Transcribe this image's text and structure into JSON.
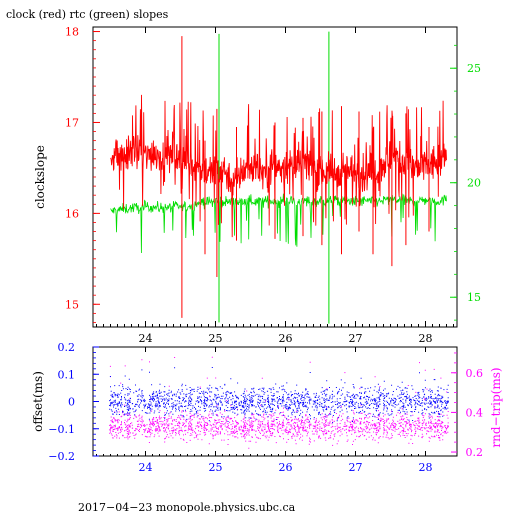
{
  "colors": {
    "clock": "#ff0000",
    "rtc": "#00dd00",
    "offset": "#0000ff",
    "rnd_trip": "#ff00ff",
    "frame": "#000000",
    "background": "#ffffff"
  },
  "chart_data": [
    {
      "type": "line",
      "title": "clock (red) rtc (green) slopes",
      "ylabel": "clockslope",
      "xlabel": "",
      "grid": false,
      "x_range": [
        23.25,
        28.45
      ],
      "x_ticks": [
        24,
        25,
        26,
        27,
        28
      ],
      "x_tick_labels": [
        "24",
        "25",
        "26",
        "27",
        "28"
      ],
      "y_left_range": [
        14.75,
        18.05
      ],
      "y_left_ticks": [
        15,
        16,
        17,
        18
      ],
      "y_left_tick_labels": [
        "15",
        "16",
        "17",
        "18"
      ],
      "y_right_range": [
        13.7,
        26.8
      ],
      "y_right_ticks": [
        15,
        20,
        25
      ],
      "y_right_tick_labels": [
        "15",
        "20",
        "25"
      ],
      "series": [
        {
          "name": "clock",
          "color": "#ff0000",
          "axis": "left",
          "x": [
            23.5,
            23.6,
            23.7,
            23.8,
            23.9,
            24.0,
            24.1,
            24.2,
            24.3,
            24.4,
            24.5,
            24.6,
            24.7,
            24.8,
            24.9,
            25.0,
            25.1,
            25.2,
            25.3,
            25.4,
            25.5,
            25.6,
            25.7,
            25.8,
            25.9,
            26.0,
            26.1,
            26.2,
            26.3,
            26.4,
            26.5,
            26.6,
            26.7,
            26.8,
            26.9,
            27.0,
            27.1,
            27.2,
            27.3,
            27.4,
            27.5,
            27.6,
            27.7,
            27.8,
            27.9,
            28.0,
            28.1,
            28.2,
            28.3
          ],
          "values": [
            16.65,
            16.67,
            16.62,
            16.7,
            16.66,
            16.62,
            16.68,
            16.64,
            16.58,
            16.66,
            16.56,
            16.6,
            16.52,
            16.48,
            16.45,
            16.45,
            16.5,
            16.4,
            16.35,
            16.48,
            16.52,
            16.5,
            16.44,
            16.52,
            16.5,
            16.54,
            16.48,
            16.52,
            16.56,
            16.5,
            16.48,
            16.46,
            16.44,
            16.5,
            16.46,
            16.45,
            16.42,
            16.45,
            16.48,
            16.55,
            16.6,
            16.62,
            16.56,
            16.5,
            16.48,
            16.52,
            16.54,
            16.58,
            16.6
          ],
          "spikes": [
            {
              "x": 24.52,
              "low": 14.85,
              "high": 17.95
            },
            {
              "x": 24.85,
              "low": 15.55,
              "high": 16.8
            },
            {
              "x": 25.02,
              "low": 15.3,
              "high": 17.15
            },
            {
              "x": 25.3,
              "low": 15.7,
              "high": 16.95
            },
            {
              "x": 25.85,
              "low": 15.72,
              "high": 17.0
            },
            {
              "x": 26.25,
              "low": 15.75,
              "high": 17.05
            },
            {
              "x": 26.52,
              "low": 15.65,
              "high": 17.12
            },
            {
              "x": 26.8,
              "low": 15.55,
              "high": 17.18
            },
            {
              "x": 27.05,
              "low": 15.8,
              "high": 17.12
            },
            {
              "x": 27.25,
              "low": 15.55,
              "high": 16.9
            },
            {
              "x": 27.52,
              "low": 15.42,
              "high": 16.95
            },
            {
              "x": 27.72,
              "low": 15.65,
              "high": 17.1
            },
            {
              "x": 28.05,
              "low": 15.8,
              "high": 16.95
            }
          ]
        },
        {
          "name": "rtc",
          "color": "#00dd00",
          "axis": "right",
          "x": [
            23.5,
            23.6,
            23.7,
            23.8,
            23.9,
            24.0,
            24.1,
            24.2,
            24.3,
            24.4,
            24.5,
            24.6,
            24.7,
            24.8,
            24.9,
            25.0,
            25.1,
            25.2,
            25.3,
            25.4,
            25.5,
            25.6,
            25.7,
            25.8,
            25.9,
            26.0,
            26.1,
            26.2,
            26.3,
            26.4,
            26.5,
            26.6,
            26.7,
            26.8,
            26.9,
            27.0,
            27.1,
            27.2,
            27.3,
            27.4,
            27.5,
            27.6,
            27.7,
            27.8,
            27.9,
            28.0,
            28.1,
            28.2,
            28.3
          ],
          "values": [
            18.75,
            18.8,
            18.85,
            18.9,
            18.9,
            18.95,
            18.95,
            18.9,
            18.92,
            18.95,
            18.95,
            18.95,
            19.05,
            19.15,
            19.15,
            19.2,
            19.2,
            19.15,
            19.15,
            19.18,
            19.2,
            19.2,
            19.18,
            19.2,
            19.2,
            19.22,
            19.2,
            19.18,
            19.2,
            19.2,
            19.2,
            19.2,
            19.22,
            19.2,
            19.18,
            19.18,
            19.2,
            19.18,
            19.2,
            19.22,
            19.25,
            19.25,
            19.22,
            19.2,
            19.22,
            19.25,
            19.22,
            19.2,
            19.25
          ],
          "spikes": [
            {
              "x": 25.05,
              "low": 13.9,
              "high": 26.5
            },
            {
              "x": 26.62,
              "low": 13.85,
              "high": 26.6
            }
          ]
        }
      ]
    },
    {
      "type": "scatter",
      "title": "",
      "ylabel": "offset(ms)",
      "y2label": "rnd−trip(ms)",
      "xlabel": "",
      "grid": false,
      "x_range": [
        23.25,
        28.45
      ],
      "x_ticks": [
        24,
        25,
        26,
        27,
        28
      ],
      "x_tick_labels": [
        "24",
        "25",
        "26",
        "27",
        "28"
      ],
      "y_left_range": [
        -0.2,
        0.2
      ],
      "y_left_ticks": [
        -0.2,
        -0.1,
        0,
        0.1,
        0.2
      ],
      "y_left_tick_labels": [
        "−0.2",
        "−0.1",
        "0",
        "0.1",
        "0.2"
      ],
      "y_right_range": [
        0.18,
        0.73
      ],
      "y_right_ticks": [
        0.2,
        0.4,
        0.6
      ],
      "y_right_tick_labels": [
        "0.2",
        "0.4",
        "0.6"
      ],
      "series": [
        {
          "name": "offset",
          "color": "#0000ff",
          "axis": "left",
          "x_span": [
            23.48,
            28.32
          ],
          "center": 0.0,
          "spread": 0.028
        },
        {
          "name": "rnd_trip",
          "color": "#ff00ff",
          "axis": "right",
          "x_span": [
            23.48,
            28.32
          ],
          "center": 0.33,
          "spread": 0.035
        }
      ]
    }
  ],
  "footer": "2017−04−23  monopole.physics.ubc.ca"
}
